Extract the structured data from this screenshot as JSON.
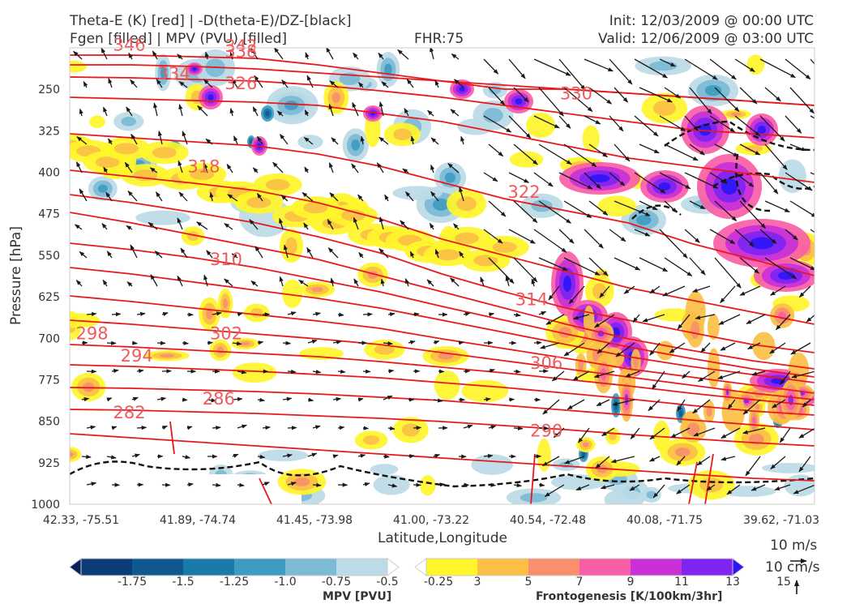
{
  "header": {
    "title_line1": "Theta-E (K) [red] | -D(theta-E)/DZ-[black]",
    "title_line2": "Fgen [filled] | MPV (PVU) [filled]",
    "fhr": "FHR:75",
    "init": "Init: 12/03/2009 @ 00:00 UTC",
    "valid": "Valid: 12/06/2009 @ 03:00 UTC"
  },
  "chart_data": {
    "type": "cross-section",
    "xlabel": "Latitude,Longitude",
    "ylabel": "Pressure [hPa]",
    "x_ticks": [
      "42.33, -75.51",
      "41.89, -74.74",
      "41.45, -73.98",
      "41.00, -73.22",
      "40.54, -72.48",
      "40.08, -71.75",
      "39.62, -71.03"
    ],
    "y_ticks": [
      "250",
      "325",
      "400",
      "475",
      "550",
      "625",
      "700",
      "775",
      "850",
      "925",
      "1000"
    ],
    "ylim": [
      1000,
      175
    ],
    "y_axis_inverted": true,
    "theta_e_contours": [
      {
        "value": "346",
        "x": 0.08,
        "p": 180
      },
      {
        "value": "334",
        "x": 0.14,
        "p": 232
      },
      {
        "value": "342",
        "x": 0.23,
        "p": 182
      },
      {
        "value": "338",
        "x": 0.23,
        "p": 192
      },
      {
        "value": "326",
        "x": 0.23,
        "p": 250
      },
      {
        "value": "330",
        "x": 0.68,
        "p": 268
      },
      {
        "value": "318",
        "x": 0.18,
        "p": 400
      },
      {
        "value": "322",
        "x": 0.61,
        "p": 446
      },
      {
        "value": "310",
        "x": 0.21,
        "p": 568
      },
      {
        "value": "314",
        "x": 0.62,
        "p": 640
      },
      {
        "value": "298",
        "x": 0.03,
        "p": 702
      },
      {
        "value": "302",
        "x": 0.21,
        "p": 702
      },
      {
        "value": "294",
        "x": 0.09,
        "p": 742
      },
      {
        "value": "306",
        "x": 0.64,
        "p": 755
      },
      {
        "value": "286",
        "x": 0.2,
        "p": 820
      },
      {
        "value": "282",
        "x": 0.08,
        "p": 845
      },
      {
        "value": "290",
        "x": 0.64,
        "p": 878
      }
    ],
    "mpv_colorbar": {
      "title": "MPV [PVU]",
      "ticks": [
        "-1.75",
        "-1.5",
        "-1.25",
        "-1.0",
        "-0.75",
        "-0.5",
        "-0.25"
      ],
      "colors": [
        "#08205c",
        "#0c3c78",
        "#10598f",
        "#1a7aa8",
        "#3f9cc1",
        "#7dbad5",
        "#bcdbe6",
        "#ffffff"
      ]
    },
    "fgen_colorbar": {
      "title": "Frontogenesis [K/100km/3hr]",
      "ticks": [
        "3",
        "5",
        "7",
        "9",
        "11",
        "13",
        "15"
      ],
      "colors": [
        "#ffffff",
        "#fff52a",
        "#fbbf45",
        "#f98f6c",
        "#f85ea6",
        "#c930d8",
        "#7e25f2",
        "#2e16f7"
      ]
    },
    "wind_key": {
      "horizontal": "10 m/s",
      "vertical": "10 cm/s"
    }
  }
}
